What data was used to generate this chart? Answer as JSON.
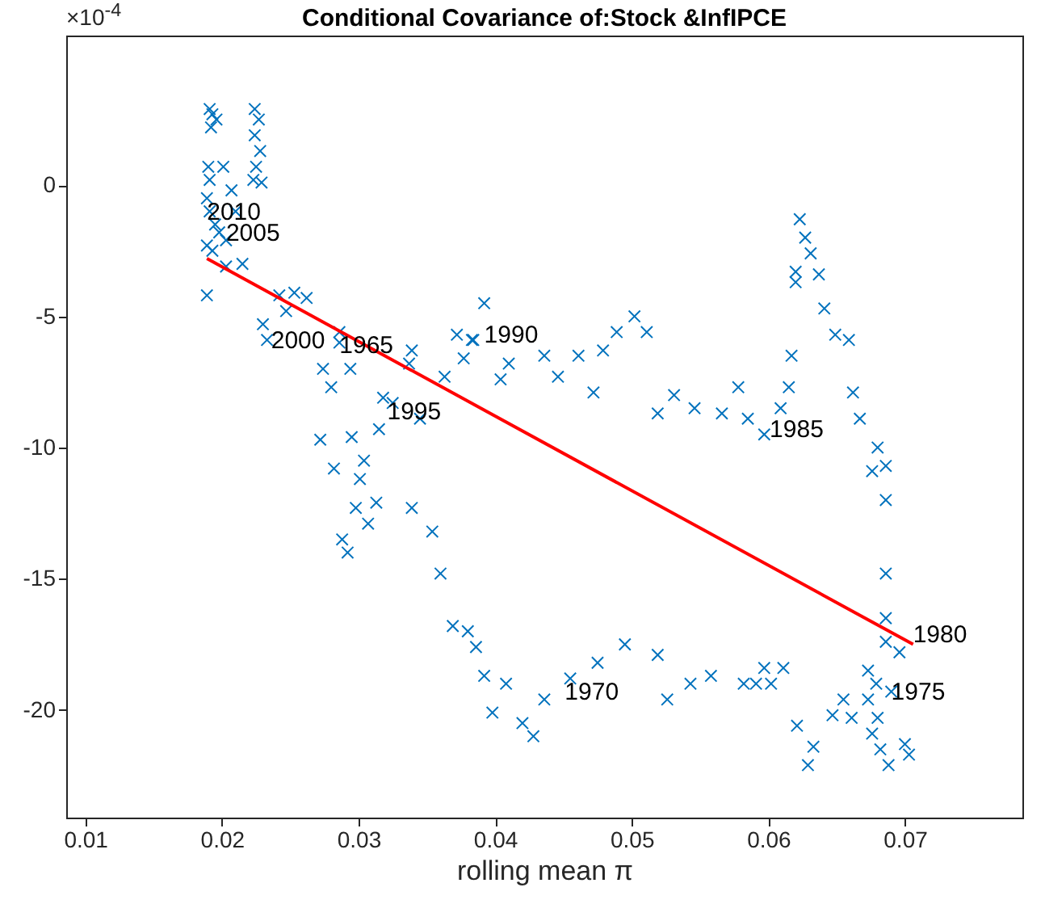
{
  "chart_data": {
    "type": "scatter",
    "title": "Conditional Covariance of:Stock &InfIPCE",
    "xlabel": "rolling mean π",
    "xlim": [
      0.0086,
      0.0786
    ],
    "xticks": [
      0.01,
      0.02,
      0.03,
      0.04,
      0.05,
      0.06,
      0.07
    ],
    "ylim": [
      -24.1,
      5.7
    ],
    "yticks": [
      -20,
      -15,
      -10,
      -5,
      0
    ],
    "marker": "cross",
    "grid": false,
    "series": [
      {
        "color": "#0072bd",
        "x": [
          0.069,
          0.0191,
          0.0193,
          0.0196,
          0.0192,
          0.019,
          0.0191,
          0.0189,
          0.0191,
          0.0195,
          0.0198,
          0.0203,
          0.0189,
          0.0193,
          0.0189,
          0.0201,
          0.0207,
          0.0224,
          0.0227,
          0.0224,
          0.0228,
          0.0225,
          0.0223,
          0.0229,
          0.021,
          0.0215,
          0.0203,
          0.0242,
          0.0253,
          0.0262,
          0.023,
          0.0233,
          0.0247,
          0.0286,
          0.0286,
          0.0274,
          0.028,
          0.0294,
          0.0339,
          0.0337,
          0.0325,
          0.0345,
          0.0318,
          0.0363,
          0.0372,
          0.0383,
          0.0392,
          0.0272,
          0.0282,
          0.0295,
          0.0315,
          0.0304,
          0.0301,
          0.0298,
          0.0288,
          0.0292,
          0.0313,
          0.0339,
          0.0354,
          0.036,
          0.0307,
          0.0384,
          0.0377,
          0.0404,
          0.041,
          0.0436,
          0.0446,
          0.0461,
          0.0472,
          0.0479,
          0.0489,
          0.0502,
          0.0511,
          0.0519,
          0.0531,
          0.0546,
          0.0566,
          0.0578,
          0.0585,
          0.0597,
          0.0369,
          0.038,
          0.0386,
          0.0392,
          0.0408,
          0.0398,
          0.042,
          0.0428,
          0.0436,
          0.0455,
          0.0475,
          0.0495,
          0.0519,
          0.0526,
          0.0543,
          0.0558,
          0.0582,
          0.0597,
          0.0623,
          0.0627,
          0.0631,
          0.062,
          0.062,
          0.0637,
          0.0641,
          0.0649,
          0.0659,
          0.0662,
          0.0667,
          0.068,
          0.0676,
          0.0686,
          0.0686,
          0.0617,
          0.0615,
          0.0609,
          0.0686,
          0.0686,
          0.0686,
          0.0696,
          0.0673,
          0.0679,
          0.0673,
          0.0661,
          0.0655,
          0.0647,
          0.0621,
          0.0633,
          0.0629,
          0.0676,
          0.0682,
          0.0688,
          0.07,
          0.0703,
          0.068,
          0.0611,
          0.0602,
          0.0591
        ],
        "values": [
          -19.3,
          2.9,
          2.7,
          2.5,
          2.2,
          0.7,
          0.2,
          -0.5,
          -1.0,
          -1.5,
          -1.8,
          -2.1,
          -2.3,
          -2.5,
          -4.2,
          0.7,
          -0.2,
          2.9,
          2.5,
          1.9,
          1.3,
          0.7,
          0.2,
          0.1,
          -1.0,
          -3.0,
          -3.1,
          -4.2,
          -4.1,
          -4.3,
          -5.3,
          -5.9,
          -4.8,
          -5.6,
          -6.0,
          -7.0,
          -7.7,
          -7.0,
          -6.3,
          -6.8,
          -8.3,
          -8.9,
          -8.1,
          -7.3,
          -5.7,
          -5.9,
          -4.5,
          -9.7,
          -10.8,
          -9.6,
          -9.3,
          -10.5,
          -11.2,
          -12.3,
          -13.5,
          -14.0,
          -12.1,
          -12.3,
          -13.2,
          -14.8,
          -12.9,
          -5.9,
          -6.6,
          -7.4,
          -6.8,
          -6.5,
          -7.3,
          -6.5,
          -7.9,
          -6.3,
          -5.6,
          -5.0,
          -5.6,
          -8.7,
          -8.0,
          -8.5,
          -8.7,
          -7.7,
          -8.9,
          -9.5,
          -16.8,
          -17.0,
          -17.6,
          -18.7,
          -19.0,
          -20.1,
          -20.5,
          -21.0,
          -19.6,
          -18.8,
          -18.2,
          -17.5,
          -17.9,
          -19.6,
          -19.0,
          -18.7,
          -19.0,
          -18.4,
          -1.3,
          -2.0,
          -2.6,
          -3.3,
          -3.7,
          -3.4,
          -4.7,
          -5.7,
          -5.9,
          -7.9,
          -8.9,
          -10.0,
          -10.9,
          -10.7,
          -12.0,
          -6.5,
          -7.7,
          -8.5,
          -14.8,
          -16.5,
          -17.4,
          -17.8,
          -18.5,
          -19.0,
          -19.6,
          -20.3,
          -19.6,
          -20.2,
          -20.6,
          -21.4,
          -22.1,
          -20.9,
          -21.5,
          -22.1,
          -21.3,
          -21.7,
          -20.3,
          -18.4,
          -19.0,
          -19.0
        ]
      },
      {
        "type": "line",
        "marker": "none",
        "color": "#ff0000",
        "x": [
          0.0189,
          0.0706
        ],
        "values": [
          -2.8,
          -17.5
        ]
      }
    ],
    "annotations": [
      "×10$^{-4}$",
      {
        "text": "2010",
        "x": 0.0189,
        "y": -1.0
      },
      {
        "text": "2005",
        "x": 0.0203,
        "y": -1.8
      },
      {
        "text": "2000",
        "x": 0.0236,
        "y": -5.9
      },
      {
        "text": "1965",
        "x": 0.0286,
        "y": -6.1
      },
      {
        "text": "1995",
        "x": 0.0321,
        "y": -8.6
      },
      {
        "text": "1990",
        "x": 0.0392,
        "y": -5.7
      },
      {
        "text": "1985",
        "x": 0.0601,
        "y": -9.3
      },
      {
        "text": "1980",
        "x": 0.0706,
        "y": -17.1
      },
      {
        "text": "1975",
        "x": 0.069,
        "y": -19.3
      },
      {
        "text": "1970",
        "x": 0.0451,
        "y": -19.3
      }
    ]
  }
}
